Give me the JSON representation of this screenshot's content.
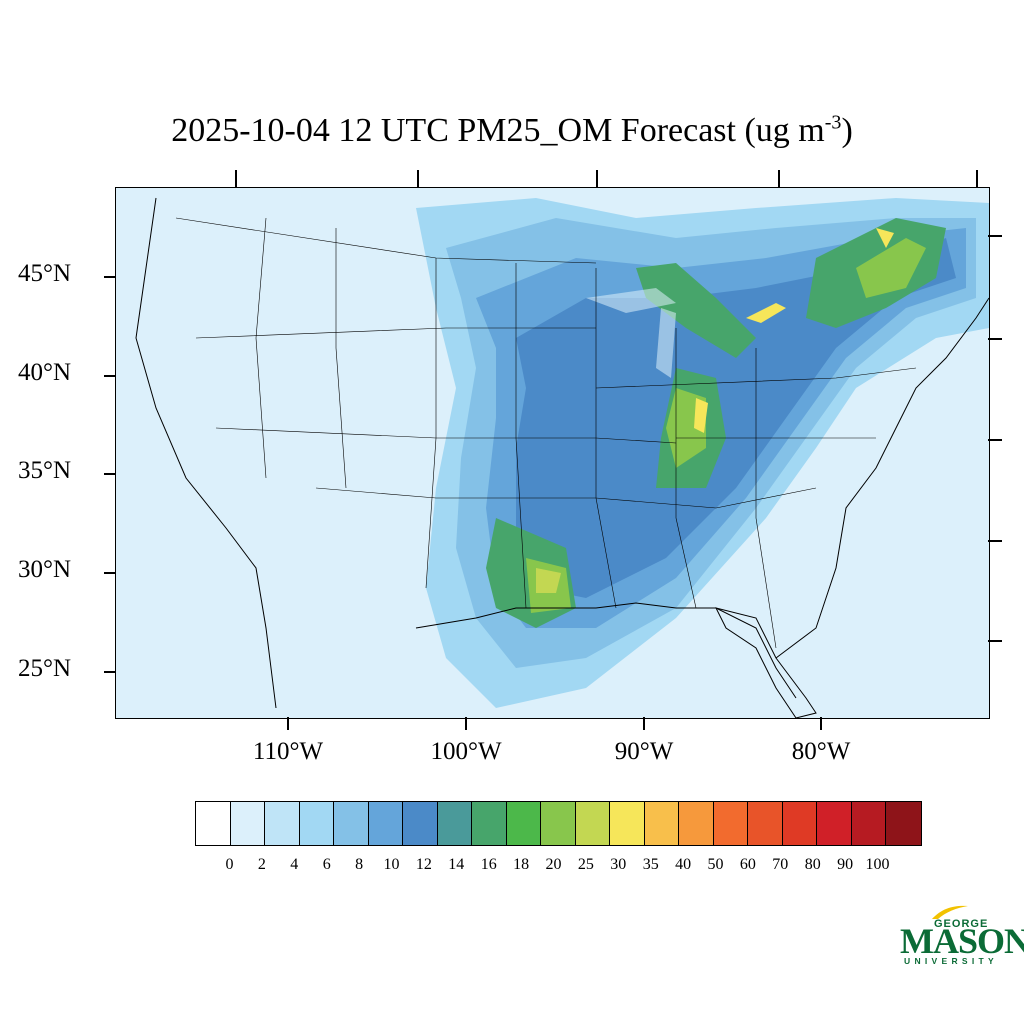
{
  "title": {
    "text": "2025-10-04 12 UTC PM25_OM Forecast (ug m",
    "superscript": "-3",
    "suffix": ")"
  },
  "axes": {
    "lat_labels": [
      "45°N",
      "40°N",
      "35°N",
      "30°N",
      "25°N"
    ],
    "lon_labels": [
      "110°W",
      "100°W",
      "90°W",
      "80°W"
    ]
  },
  "colorbar": {
    "labels": [
      "0",
      "2",
      "4",
      "6",
      "8",
      "10",
      "12",
      "14",
      "16",
      "18",
      "20",
      "25",
      "30",
      "35",
      "40",
      "50",
      "60",
      "70",
      "80",
      "90",
      "100"
    ],
    "colors": [
      "#ffffff",
      "#dcf0fb",
      "#bfe4f7",
      "#a2d8f3",
      "#84c1e7",
      "#64a5da",
      "#4b8ac8",
      "#4a9a9a",
      "#47a56b",
      "#4cb84a",
      "#88c64c",
      "#c3d752",
      "#f6e65a",
      "#f8bf4b",
      "#f6993c",
      "#f26b2e",
      "#e85429",
      "#df3a25",
      "#d02028",
      "#b61b22",
      "#8e1419"
    ]
  },
  "logo": {
    "line1": "GEORGE",
    "line2": "MASON",
    "line3": "UNIVERSITY",
    "color": "#0b6b36"
  }
}
